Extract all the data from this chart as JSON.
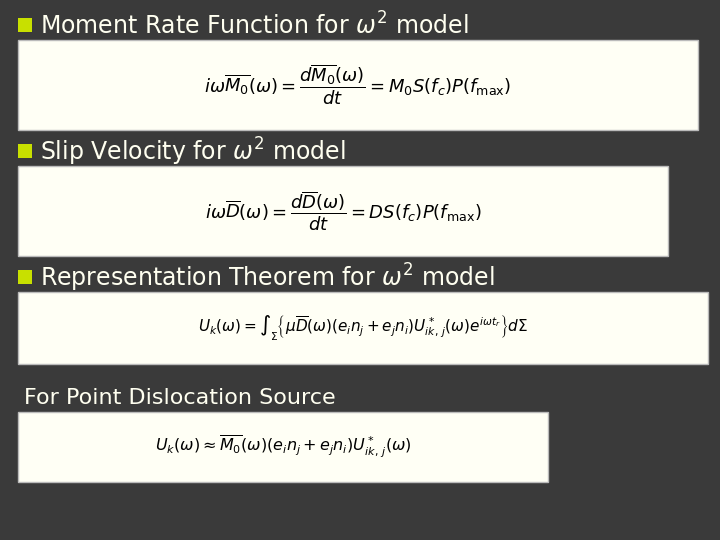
{
  "background_color": "#3a3a3a",
  "bullet_color": "#c8e000",
  "heading_color": "#fffff0",
  "subtitle_color": "#fffff0",
  "box_bg_color": "#fffff5",
  "box_edge_color": "#cccccc",
  "bullet_items": [
    "Moment Rate Function for $\\omega^2$ model",
    "Slip Velocity for $\\omega^2$ model",
    "Representation Theorem for $\\omega^2$ model"
  ],
  "eq1": "$i\\omega\\overline{M_0}(\\omega) = \\dfrac{d\\overline{M_0}(\\omega)}{dt} = M_0 S(f_c)P(f_{\\mathrm{max}})$",
  "eq2": "$i\\omega\\overline{D}(\\omega) = \\dfrac{d\\overline{D}(\\omega)}{dt} = DS(f_c)P(f_{\\mathrm{max}})$",
  "eq3": "$U_k(\\omega) = \\int_{\\Sigma} \\left\\{ \\mu\\overline{D}(\\omega)(e_i n_j + e_j n_i)U^*_{ik,\\,j}(\\omega)e^{i\\omega t_r} \\right\\} d\\Sigma$",
  "subtitle": "For Point Dislocation Source",
  "eq4": "$U_k(\\omega) \\approx \\overline{M_0}(\\omega)(e_i n_j + e_j n_i)U^*_{ik,\\,j}(\\omega)$",
  "figsize": [
    7.2,
    5.4
  ],
  "dpi": 100
}
